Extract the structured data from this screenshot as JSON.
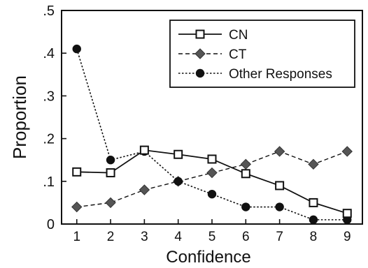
{
  "chart_data": {
    "type": "line",
    "title": "",
    "xlabel": "Confidence",
    "ylabel": "Proportion",
    "x": [
      1,
      2,
      3,
      4,
      5,
      6,
      7,
      8,
      9
    ],
    "xlim": [
      0.55,
      9.45
    ],
    "ylim": [
      0,
      0.5
    ],
    "yticks": [
      0,
      0.1,
      0.2,
      0.3,
      0.4,
      0.5
    ],
    "ytick_labels": [
      "0",
      ".1",
      ".2",
      ".3",
      ".4",
      ".5"
    ],
    "xtick_labels": [
      "1",
      "2",
      "3",
      "4",
      "5",
      "6",
      "7",
      "8",
      "9"
    ],
    "grid": false,
    "legend_position": "top-right",
    "series": [
      {
        "name": "CN",
        "marker": "open-square",
        "line": "solid",
        "values": [
          0.122,
          0.12,
          0.173,
          0.163,
          0.152,
          0.118,
          0.09,
          0.05,
          0.025
        ]
      },
      {
        "name": "CT",
        "marker": "filled-diamond",
        "line": "dashed",
        "values": [
          0.04,
          0.05,
          0.08,
          0.1,
          0.12,
          0.14,
          0.17,
          0.14,
          0.17
        ]
      },
      {
        "name": "Other Responses",
        "marker": "filled-circle",
        "line": "dotted",
        "values": [
          0.41,
          0.15,
          0.17,
          0.1,
          0.07,
          0.04,
          0.04,
          0.01,
          0.01
        ]
      }
    ],
    "colors": {
      "ink": "#111111",
      "background": "#ffffff"
    }
  }
}
